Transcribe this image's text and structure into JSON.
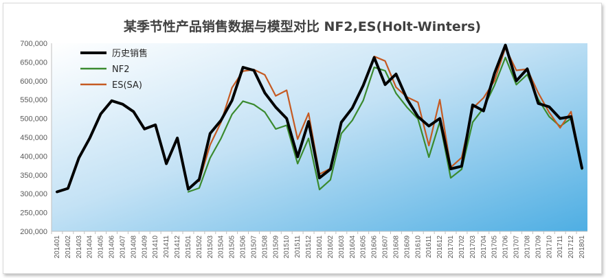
{
  "chart_data": {
    "type": "line",
    "title": "某季节性产品销售数据与模型对比 NF2,ES(Holt-Winters)",
    "xlabel": "",
    "ylabel": "",
    "ylim": [
      200000,
      700000
    ],
    "ytick_step": 50000,
    "ytick_labels": [
      "200,000",
      "250,000",
      "300,000",
      "350,000",
      "400,000",
      "450,000",
      "500,000",
      "550,000",
      "600,000",
      "650,000",
      "700,000"
    ],
    "grid": false,
    "legend_position": "top-left",
    "categories": [
      "201401",
      "201402",
      "201403",
      "201404",
      "201405",
      "201406",
      "201407",
      "201408",
      "201409",
      "201410",
      "201411",
      "201412",
      "201501",
      "201502",
      "201503",
      "201504",
      "201505",
      "201506",
      "201507",
      "201508",
      "201509",
      "201510",
      "201511",
      "201512",
      "201601",
      "201602",
      "201603",
      "201604",
      "201605",
      "201606",
      "201607",
      "201608",
      "201609",
      "201610",
      "201611",
      "201612",
      "201701",
      "201702",
      "201703",
      "201704",
      "201705",
      "201706",
      "201707",
      "201708",
      "201709",
      "201710",
      "201711",
      "201712",
      "201801"
    ],
    "series": [
      {
        "name": "历史销售",
        "color": "#000000",
        "width": 4,
        "values": [
          305000,
          314000,
          395000,
          448000,
          512000,
          547000,
          538000,
          518000,
          472000,
          483000,
          380000,
          448000,
          312000,
          338000,
          460000,
          495000,
          548000,
          636000,
          628000,
          568000,
          530000,
          500000,
          398000,
          492000,
          342000,
          365000,
          490000,
          528000,
          588000,
          662000,
          590000,
          618000,
          552000,
          505000,
          480000,
          500000,
          366000,
          373000,
          536000,
          520000,
          620000,
          695000,
          600000,
          632000,
          540000,
          531000,
          500000,
          505000,
          368000
        ]
      },
      {
        "name": "NF2",
        "color": "#3a8a2e",
        "width": 2.2,
        "values": [
          null,
          null,
          null,
          null,
          null,
          null,
          null,
          null,
          null,
          null,
          null,
          null,
          305000,
          315000,
          395000,
          447000,
          511000,
          546000,
          537000,
          517000,
          472000,
          482000,
          380000,
          447000,
          311000,
          337000,
          460000,
          495000,
          548000,
          636000,
          627000,
          567000,
          530000,
          499000,
          397000,
          491000,
          342000,
          365000,
          490000,
          528000,
          588000,
          662000,
          590000,
          617000,
          551000,
          505000,
          479000,
          500000,
          365000
        ]
      },
      {
        "name": "ES(SA)",
        "color": "#c55a22",
        "width": 2.2,
        "values": [
          null,
          null,
          null,
          null,
          null,
          null,
          null,
          null,
          null,
          null,
          null,
          null,
          null,
          333000,
          430000,
          490000,
          582000,
          626000,
          630000,
          616000,
          560000,
          575000,
          445000,
          514000,
          352000,
          367000,
          488000,
          526000,
          590000,
          665000,
          653000,
          583000,
          557000,
          543000,
          428000,
          550000,
          370000,
          396000,
          527000,
          555000,
          600000,
          688000,
          628000,
          631000,
          568000,
          516000,
          475000,
          518000,
          370000
        ]
      }
    ]
  }
}
